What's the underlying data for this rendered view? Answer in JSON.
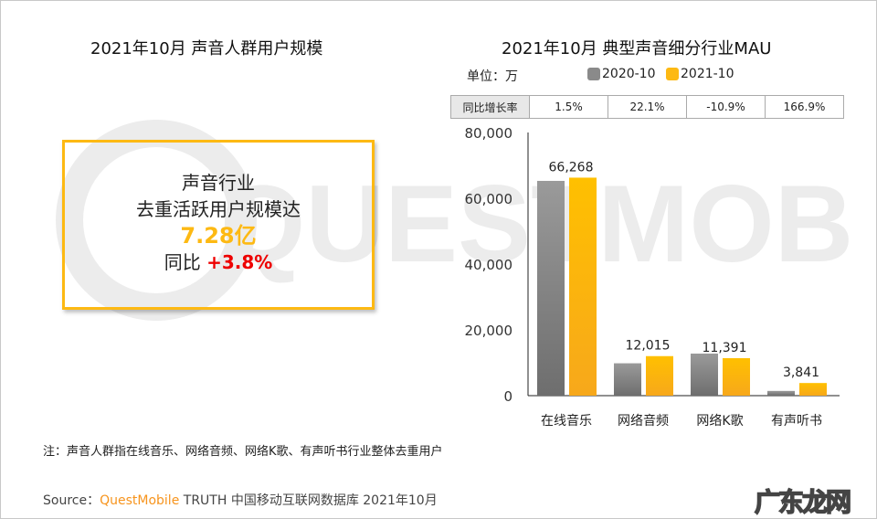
{
  "left": {
    "title": "2021年10月 声音人群用户规模",
    "line1": "声音行业",
    "line2": "去重活跃用户规模达",
    "value": "7.28亿",
    "yoy_label": "同比",
    "yoy_value": "+3.8%",
    "accent": "#fdb913"
  },
  "watermark": "QUESTMOBILE",
  "chart_data": {
    "type": "bar",
    "title": "2021年10月  典型声音细分行业MAU",
    "unit": "单位：万",
    "categories": [
      "在线音乐",
      "网络音频",
      "网络K歌",
      "有声听书"
    ],
    "series": [
      {
        "name": "2020-10",
        "color": "#8a8a8a",
        "values": [
          65289,
          9840,
          12784,
          1439
        ]
      },
      {
        "name": "2021-10",
        "color": "#fdb913",
        "values": [
          66268,
          12015,
          11391,
          3841
        ]
      }
    ],
    "data_labels": [
      "66,268",
      "12,015",
      "11,391",
      "3,841"
    ],
    "growth_header": "同比增长率",
    "growth": [
      "1.5%",
      "22.1%",
      "-10.9%",
      "166.9%"
    ],
    "yticks": [
      "0",
      "20,000",
      "40,000",
      "60,000",
      "80,000"
    ],
    "ylim": [
      0,
      80000
    ],
    "legend": "top",
    "grid": false
  },
  "footer": {
    "note": "注：声音人群指在线音乐、网络音频、网络K歌、有声听书行业整体去重用户",
    "source_label": "Source：",
    "source_brand": "QuestMobile",
    "source_rest": " TRUTH 中国移动互联网数据库 2021年10月",
    "site_logo": "广东龙网"
  }
}
